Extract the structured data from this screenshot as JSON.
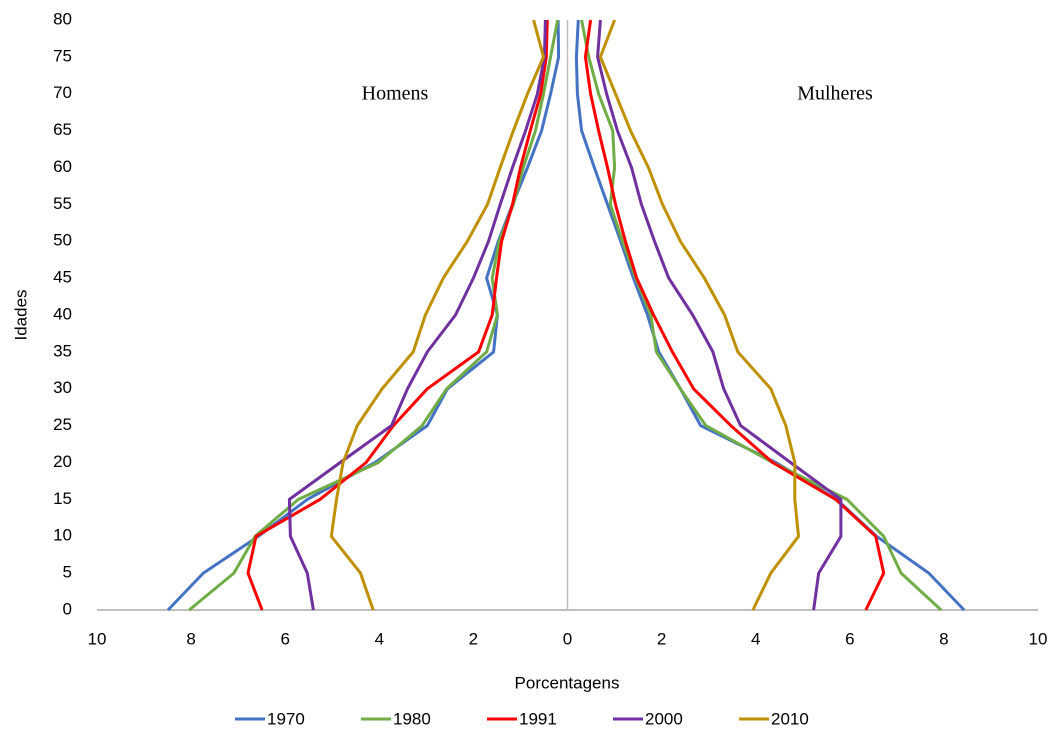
{
  "chart_data": {
    "type": "line",
    "xlabel": "Porcentagens",
    "ylabel": "Idades",
    "annotations": [
      "Homens",
      "Mulheres"
    ],
    "y": [
      0,
      5,
      10,
      15,
      20,
      25,
      30,
      35,
      40,
      45,
      50,
      55,
      60,
      65,
      70,
      75,
      80
    ],
    "series": [
      {
        "name": "1970",
        "color": "#4472c4",
        "men": [
          -8.49,
          -7.74,
          -6.57,
          -5.53,
          -4.09,
          -2.98,
          -2.55,
          -1.57,
          -1.49,
          -1.72,
          -1.47,
          -1.17,
          -0.85,
          -0.55,
          -0.36,
          -0.19,
          -0.2
        ],
        "women": [
          8.43,
          7.68,
          6.57,
          5.72,
          4.43,
          2.83,
          2.4,
          1.94,
          1.7,
          1.4,
          1.13,
          0.85,
          0.57,
          0.3,
          0.21,
          0.19,
          0.23
        ]
      },
      {
        "name": "1980",
        "color": "#70ad47",
        "men": [
          -8.04,
          -7.09,
          -6.64,
          -5.72,
          -4.02,
          -3.09,
          -2.57,
          -1.72,
          -1.49,
          -1.6,
          -1.45,
          -1.15,
          -0.94,
          -0.68,
          -0.51,
          -0.36,
          -0.21
        ],
        "women": [
          7.94,
          7.09,
          6.72,
          5.94,
          4.36,
          2.94,
          2.4,
          1.89,
          1.77,
          1.45,
          1.17,
          0.91,
          1.0,
          0.96,
          0.66,
          0.45,
          0.3
        ]
      },
      {
        "name": "1991",
        "color": "#ff0000",
        "men": [
          -6.49,
          -6.79,
          -6.62,
          -5.26,
          -4.28,
          -3.7,
          -2.98,
          -1.89,
          -1.6,
          -1.51,
          -1.4,
          -1.17,
          -1.0,
          -0.79,
          -0.57,
          -0.45,
          -0.43
        ],
        "women": [
          6.34,
          6.72,
          6.55,
          5.7,
          4.36,
          3.47,
          2.68,
          2.23,
          1.83,
          1.47,
          1.23,
          1.02,
          0.85,
          0.66,
          0.49,
          0.38,
          0.49
        ]
      },
      {
        "name": "2000",
        "color": "#7030a0",
        "men": [
          -5.4,
          -5.53,
          -5.89,
          -5.91,
          -4.83,
          -3.74,
          -3.4,
          -2.98,
          -2.38,
          -2.0,
          -1.68,
          -1.43,
          -1.17,
          -0.89,
          -0.64,
          -0.49,
          -0.47
        ],
        "women": [
          5.23,
          5.34,
          5.81,
          5.81,
          4.74,
          3.68,
          3.32,
          3.09,
          2.66,
          2.15,
          1.85,
          1.57,
          1.36,
          1.06,
          0.83,
          0.64,
          0.7
        ]
      },
      {
        "name": "2010",
        "color": "#bf9000",
        "men": [
          -4.13,
          -4.4,
          -5.02,
          -4.91,
          -4.77,
          -4.47,
          -3.94,
          -3.28,
          -3.02,
          -2.64,
          -2.13,
          -1.7,
          -1.43,
          -1.15,
          -0.85,
          -0.51,
          -0.72
        ],
        "women": [
          3.94,
          4.32,
          4.91,
          4.83,
          4.83,
          4.64,
          4.32,
          3.62,
          3.34,
          2.91,
          2.4,
          2.02,
          1.72,
          1.34,
          1.02,
          0.7,
          1.0
        ]
      }
    ],
    "xlim": [
      -10,
      10
    ],
    "xticks": [
      {
        "value": -10,
        "label": "10"
      },
      {
        "value": -8,
        "label": "8"
      },
      {
        "value": -6,
        "label": "6"
      },
      {
        "value": -4,
        "label": "4"
      },
      {
        "value": -2,
        "label": "2"
      },
      0,
      2,
      4,
      6,
      8,
      10
    ],
    "ylim": [
      0,
      80
    ],
    "yticks": [
      0,
      5,
      10,
      15,
      20,
      25,
      30,
      35,
      40,
      45,
      50,
      55,
      60,
      65,
      70,
      75,
      80
    ],
    "grid": false,
    "legend": "bottom"
  }
}
